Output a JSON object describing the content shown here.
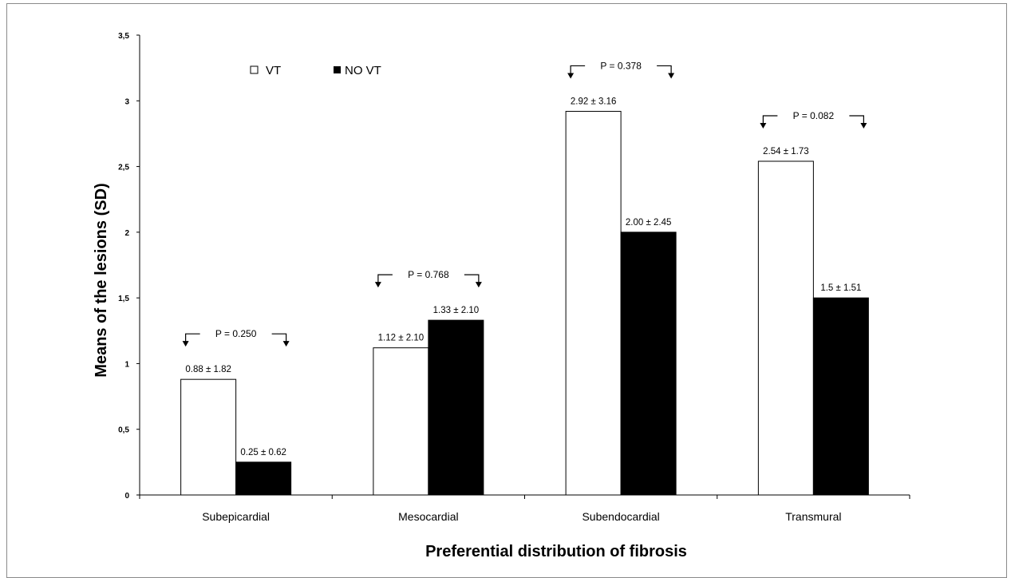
{
  "chart_data": {
    "type": "bar",
    "xlabel": "Preferential distribution of fibrosis",
    "ylabel": "Means of the lesions (SD)",
    "ylim": [
      0,
      3.5
    ],
    "yticks": [
      "0",
      "0,5",
      "1",
      "1,5",
      "2",
      "2,5",
      "3",
      "3,5"
    ],
    "grid": false,
    "legend_position": "top-left",
    "categories": [
      "Subepicardial",
      "Mesocardial",
      "Subendocardial",
      "Transmural"
    ],
    "series": [
      {
        "name": "VT",
        "fill": "#ffffff",
        "values": [
          0.88,
          1.12,
          2.92,
          2.54
        ],
        "labels": [
          "0.88 ± 1.82",
          "1.12 ± 2.10",
          "2.92 ± 3.16",
          "2.54 ± 1.73"
        ]
      },
      {
        "name": "NO VT",
        "fill": "#000000",
        "values": [
          0.25,
          1.33,
          2.0,
          1.5
        ],
        "labels": [
          "0.25 ± 0.62",
          "1.33 ± 2.10",
          "2.00 ± 2.45",
          "1.5 ± 1.51"
        ]
      }
    ],
    "p_values": [
      "P = 0.250",
      "P = 0.768",
      "P = 0.378",
      "P = 0.082"
    ],
    "legend": {
      "vt_label": "VT",
      "novt_label": "NO VT"
    }
  }
}
